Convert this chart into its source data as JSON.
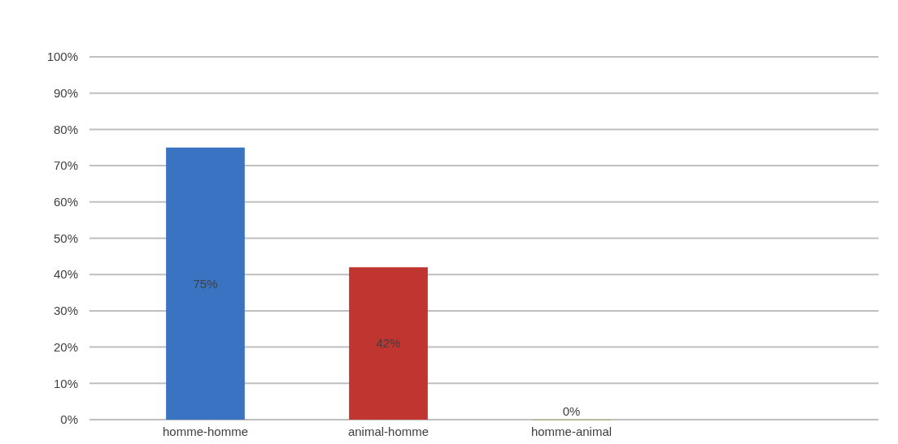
{
  "chart_data": {
    "type": "bar",
    "categories": [
      "homme-homme",
      "animal-homme",
      "homme-animal"
    ],
    "values": [
      75,
      42,
      0
    ],
    "colors": [
      "#3a73c2",
      "#c0352f",
      "#8db33a"
    ],
    "value_labels": [
      "75%",
      "42%",
      "0%"
    ],
    "ylim": [
      0,
      100
    ],
    "yticks": [
      {
        "value": 0,
        "label": "0%"
      },
      {
        "value": 10,
        "label": "10%"
      },
      {
        "value": 20,
        "label": "20%"
      },
      {
        "value": 30,
        "label": "30%"
      },
      {
        "value": 40,
        "label": "40%"
      },
      {
        "value": 50,
        "label": "50%"
      },
      {
        "value": 60,
        "label": "60%"
      },
      {
        "value": 70,
        "label": "70%"
      },
      {
        "value": 80,
        "label": "80%"
      },
      {
        "value": 90,
        "label": "90%"
      },
      {
        "value": 100,
        "label": "100%"
      }
    ],
    "grid": "y"
  }
}
